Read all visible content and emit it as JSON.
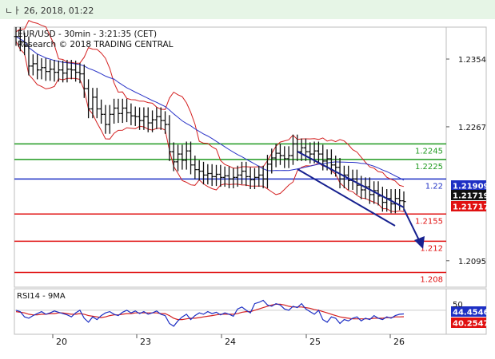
{
  "header": {
    "date_text": "ㄴㅏ ‍26, 2018, 01:22"
  },
  "chart_data": {
    "type": "line",
    "title": "EUR/USD - 30min - 3:21:35 (CET)",
    "subtitle": "Research © 2018 TRADING CENTRAL",
    "x_tick_labels": [
      "20",
      "23",
      "24",
      "25",
      "26"
    ],
    "y_tick_labels": [
      1.2354,
      1.2267,
      1.2095
    ],
    "ylim": [
      1.2061,
      1.2395
    ],
    "grid": false,
    "horizontal_levels": [
      {
        "value": 1.2245,
        "label": "1.2245",
        "color": "#1f9a1f"
      },
      {
        "value": 1.2225,
        "label": "1.2225",
        "color": "#1f9a1f"
      },
      {
        "value": 1.22,
        "label": "1.22",
        "color": "#1d2fc4"
      },
      {
        "value": 1.2155,
        "label": "1.2155",
        "color": "#e01010"
      },
      {
        "value": 1.212,
        "label": "1.212",
        "color": "#e01010"
      },
      {
        "value": 1.208,
        "label": "1.208",
        "color": "#e01010"
      }
    ],
    "price_badges": [
      {
        "value": 1.21909,
        "label": "1.21909",
        "color": "#1d2fc4"
      },
      {
        "value": 1.21719,
        "label": "1.21719",
        "color": "#111111"
      },
      {
        "value": 1.21717,
        "label": "1.21717",
        "color": "#e01010"
      }
    ],
    "price": [
      1.2383,
      1.2376,
      1.2371,
      1.2345,
      1.2348,
      1.234,
      1.2343,
      1.2338,
      1.2341,
      1.2337,
      1.234,
      1.2336,
      1.2341,
      1.234,
      1.2337,
      1.2335,
      1.2316,
      1.229,
      1.2305,
      1.229,
      1.2283,
      1.227,
      1.2283,
      1.2291,
      1.2284,
      1.2291,
      1.2285,
      1.2281,
      1.228,
      1.2275,
      1.228,
      1.2272,
      1.2276,
      1.228,
      1.2275,
      1.227,
      1.2235,
      1.2222,
      1.2232,
      1.2224,
      1.2236,
      1.2218,
      1.2212,
      1.221,
      1.2205,
      1.2207,
      1.2203,
      1.2206,
      1.2202,
      1.2204,
      1.22,
      1.2202,
      1.2205,
      1.221,
      1.2203,
      1.2199,
      1.2202,
      1.2205,
      1.22,
      1.2219,
      1.2227,
      1.2233,
      1.223,
      1.2226,
      1.223,
      1.2245,
      1.2235,
      1.224,
      1.2235,
      1.2232,
      1.2236,
      1.2232,
      1.2223,
      1.2226,
      1.2218,
      1.2215,
      1.22,
      1.2205,
      1.2198,
      1.22,
      1.2192,
      1.2186,
      1.219,
      1.218,
      1.2185,
      1.2178,
      1.217,
      1.2175,
      1.2168,
      1.2175,
      1.2172,
      1.2171
    ],
    "rsi_ylim": [
      15,
      80
    ],
    "rsi_label": "RSI14 - 9MA",
    "rsi_badges": [
      {
        "value": 44.4546,
        "label": "44.4546",
        "color": "#1d2fc4"
      },
      {
        "value": 40.2547,
        "label": "40.2547",
        "color": "#e01010"
      }
    ],
    "rsi": [
      50,
      48,
      40,
      38,
      42,
      45,
      48,
      44,
      46,
      49,
      47,
      45,
      43,
      40,
      46,
      50,
      38,
      32,
      40,
      36,
      42,
      46,
      48,
      44,
      42,
      47,
      50,
      46,
      49,
      45,
      48,
      44,
      46,
      49,
      44,
      42,
      30,
      26,
      34,
      40,
      44,
      36,
      42,
      46,
      44,
      48,
      45,
      47,
      43,
      46,
      44,
      41,
      52,
      55,
      50,
      46,
      60,
      62,
      65,
      58,
      56,
      60,
      58,
      52,
      50,
      56,
      54,
      60,
      52,
      48,
      44,
      50,
      36,
      32,
      40,
      38,
      30,
      36,
      34,
      38,
      40,
      34,
      38,
      36,
      42,
      38,
      36,
      40,
      38,
      42,
      44,
      44.5
    ],
    "rsi_ma": [
      48,
      47,
      46,
      44,
      43,
      43,
      44,
      44,
      45,
      45,
      46,
      46,
      45,
      44,
      44,
      45,
      44,
      42,
      41,
      40,
      39,
      40,
      42,
      43,
      43,
      44,
      45,
      45,
      46,
      46,
      46,
      46,
      46,
      46,
      45,
      45,
      42,
      38,
      36,
      36,
      37,
      38,
      38,
      39,
      40,
      41,
      42,
      43,
      44,
      44,
      44,
      44,
      45,
      47,
      48,
      48,
      50,
      52,
      54,
      56,
      58,
      59,
      59,
      58,
      56,
      55,
      55,
      55,
      54,
      53,
      51,
      50,
      48,
      46,
      44,
      42,
      40,
      39,
      38,
      37,
      37,
      37,
      37,
      37,
      38,
      38,
      38,
      39,
      39,
      40,
      40,
      40.25
    ]
  }
}
